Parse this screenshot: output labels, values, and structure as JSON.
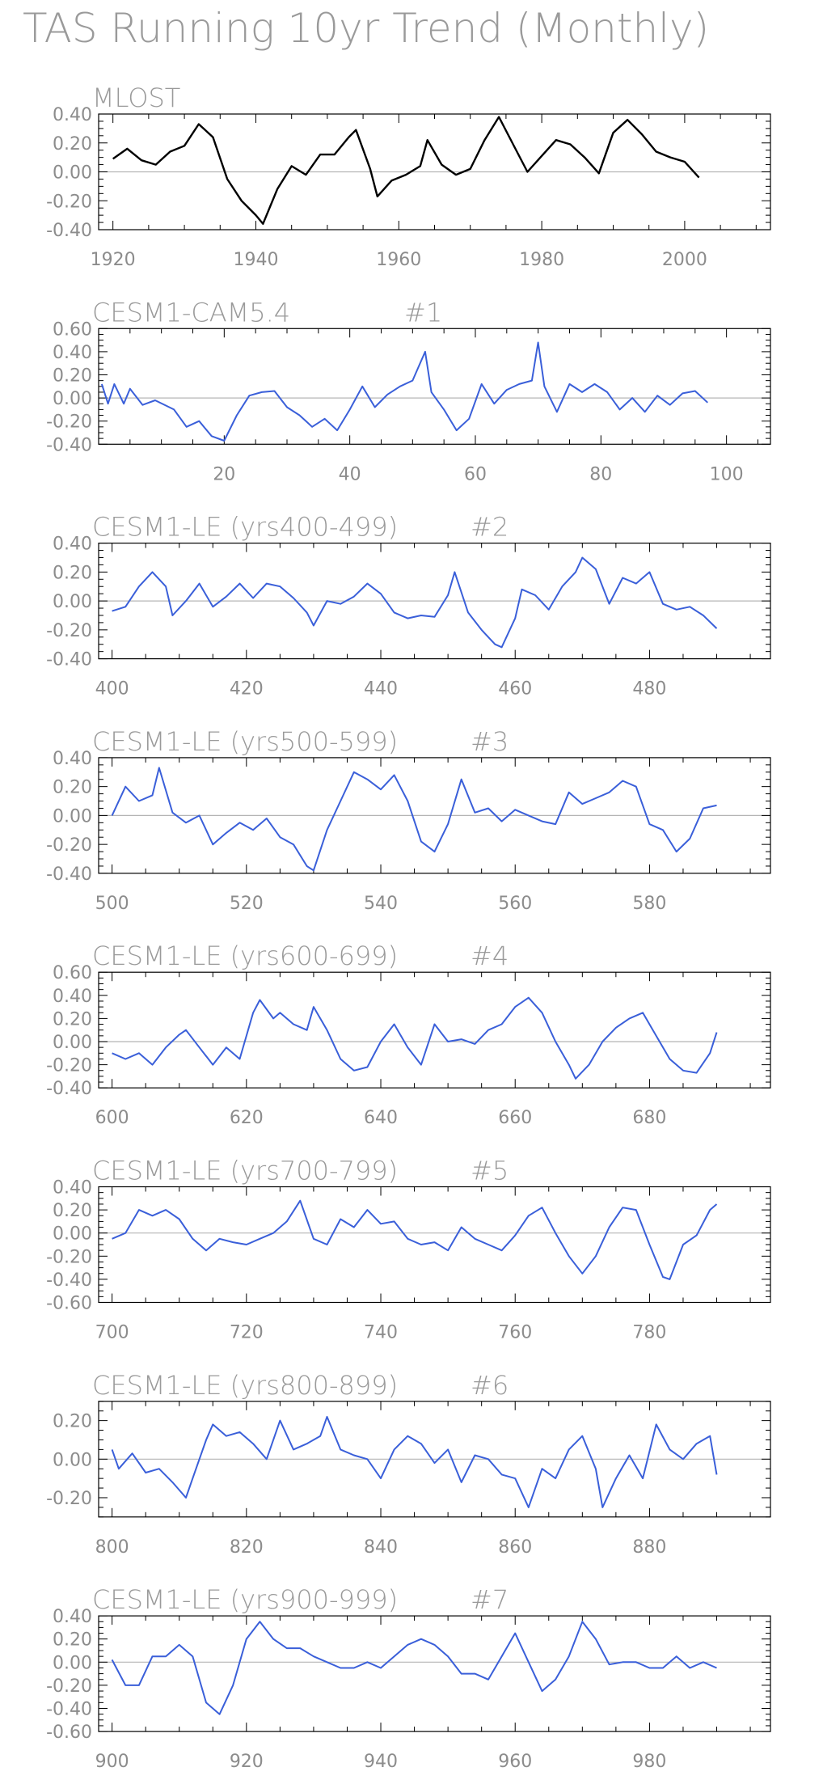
{
  "title": "TAS Running 10yr Trend (Monthly)",
  "colors": {
    "obs": "#000000",
    "model": "#3a5fd9",
    "text": "#9a9a9a",
    "zero": "#b5b5b5"
  },
  "chart_data": [
    {
      "type": "line",
      "title": "MLOST",
      "tag": "",
      "color": "obs",
      "xlim": [
        1918,
        2012
      ],
      "ylim": [
        -0.4,
        0.4
      ],
      "xticks": [
        1920,
        1940,
        1960,
        1980,
        2000
      ],
      "yticks": [
        -0.4,
        -0.2,
        0.0,
        0.2,
        0.4
      ],
      "ytick_labels": [
        "-0.40",
        "-0.20",
        "0.00",
        "0.20",
        "0.40"
      ],
      "x": [
        1920,
        1922,
        1924,
        1926,
        1928,
        1930,
        1932,
        1934,
        1936,
        1938,
        1940,
        1941,
        1943,
        1945,
        1947,
        1949,
        1951,
        1953,
        1954,
        1956,
        1957,
        1959,
        1961,
        1963,
        1964,
        1966,
        1968,
        1970,
        1972,
        1974,
        1976,
        1978,
        1980,
        1982,
        1984,
        1986,
        1988,
        1990,
        1992,
        1994,
        1996,
        1998,
        2000,
        2002
      ],
      "y": [
        0.09,
        0.16,
        0.08,
        0.05,
        0.14,
        0.18,
        0.33,
        0.24,
        -0.05,
        -0.2,
        -0.3,
        -0.36,
        -0.12,
        0.04,
        -0.02,
        0.12,
        0.12,
        0.24,
        0.29,
        0.02,
        -0.17,
        -0.06,
        -0.02,
        0.04,
        0.22,
        0.05,
        -0.02,
        0.02,
        0.22,
        0.38,
        0.19,
        0.0,
        0.11,
        0.22,
        0.19,
        0.1,
        -0.01,
        0.27,
        0.36,
        0.26,
        0.14,
        0.1,
        0.07,
        -0.04
      ]
    },
    {
      "type": "line",
      "title": "CESM1-CAM5.4",
      "tag": "#1",
      "color": "model",
      "xlim": [
        0,
        107
      ],
      "ylim": [
        -0.4,
        0.6
      ],
      "xticks": [
        20,
        40,
        60,
        80,
        100
      ],
      "yticks": [
        -0.4,
        -0.2,
        0.0,
        0.2,
        0.4,
        0.6
      ],
      "ytick_labels": [
        "-0.40",
        "-0.20",
        "0.00",
        "0.20",
        "0.40",
        "0.60"
      ],
      "x": [
        0.5,
        1.5,
        2.5,
        4,
        5,
        7,
        9,
        12,
        14,
        16,
        18,
        20,
        22,
        24,
        26,
        28,
        30,
        32,
        34,
        36,
        38,
        40,
        42,
        44,
        46,
        48,
        50,
        52,
        53,
        55,
        57,
        59,
        61,
        63,
        65,
        67,
        69,
        70,
        71,
        73,
        75,
        77,
        79,
        81,
        83,
        85,
        87,
        89,
        91,
        93,
        95,
        97
      ],
      "y": [
        0.12,
        -0.05,
        0.12,
        -0.05,
        0.08,
        -0.06,
        -0.02,
        -0.1,
        -0.25,
        -0.2,
        -0.33,
        -0.37,
        -0.15,
        0.02,
        0.05,
        0.06,
        -0.08,
        -0.15,
        -0.25,
        -0.18,
        -0.28,
        -0.1,
        0.1,
        -0.08,
        0.03,
        0.1,
        0.15,
        0.4,
        0.05,
        -0.1,
        -0.28,
        -0.18,
        0.12,
        -0.05,
        0.07,
        0.12,
        0.15,
        0.48,
        0.1,
        -0.12,
        0.12,
        0.05,
        0.12,
        0.05,
        -0.1,
        0.0,
        -0.12,
        0.02,
        -0.06,
        0.04,
        0.06,
        -0.04
      ]
    },
    {
      "type": "line",
      "title": "CESM1-LE (yrs400-499)",
      "tag": "#2",
      "color": "model",
      "xlim": [
        398,
        498
      ],
      "ylim": [
        -0.4,
        0.4
      ],
      "xticks": [
        400,
        420,
        440,
        460,
        480
      ],
      "yticks": [
        -0.4,
        -0.2,
        0.0,
        0.2,
        0.4
      ],
      "ytick_labels": [
        "-0.40",
        "-0.20",
        "0.00",
        "0.20",
        "0.40"
      ],
      "x": [
        400,
        402,
        404,
        406,
        408,
        409,
        411,
        413,
        415,
        417,
        419,
        421,
        423,
        425,
        427,
        429,
        430,
        432,
        434,
        436,
        438,
        440,
        442,
        444,
        446,
        448,
        450,
        451,
        453,
        455,
        457,
        458,
        460,
        461,
        463,
        465,
        467,
        469,
        470,
        472,
        474,
        476,
        478,
        480,
        482,
        484,
        486,
        488,
        490
      ],
      "y": [
        -0.07,
        -0.04,
        0.1,
        0.2,
        0.1,
        -0.1,
        0.0,
        0.12,
        -0.04,
        0.03,
        0.12,
        0.02,
        0.12,
        0.1,
        0.02,
        -0.08,
        -0.17,
        0.0,
        -0.02,
        0.03,
        0.12,
        0.05,
        -0.08,
        -0.12,
        -0.1,
        -0.11,
        0.04,
        0.2,
        -0.08,
        -0.2,
        -0.3,
        -0.32,
        -0.12,
        0.08,
        0.04,
        -0.06,
        0.1,
        0.2,
        0.3,
        0.22,
        -0.02,
        0.16,
        0.12,
        0.2,
        -0.02,
        -0.06,
        -0.04,
        -0.1,
        -0.19
      ]
    },
    {
      "type": "line",
      "title": "CESM1-LE (yrs500-599)",
      "tag": "#3",
      "color": "model",
      "xlim": [
        498,
        598
      ],
      "ylim": [
        -0.4,
        0.4
      ],
      "xticks": [
        500,
        520,
        540,
        560,
        580
      ],
      "yticks": [
        -0.4,
        -0.2,
        0.0,
        0.2,
        0.4
      ],
      "ytick_labels": [
        "-0.40",
        "-0.20",
        "0.00",
        "0.20",
        "0.40"
      ],
      "x": [
        500,
        502,
        504,
        506,
        507,
        509,
        511,
        513,
        515,
        517,
        519,
        521,
        523,
        525,
        527,
        529,
        530,
        532,
        534,
        536,
        538,
        540,
        542,
        544,
        546,
        548,
        550,
        552,
        554,
        556,
        558,
        560,
        562,
        564,
        566,
        568,
        570,
        572,
        574,
        576,
        578,
        580,
        582,
        584,
        586,
        588,
        590
      ],
      "y": [
        0.0,
        0.2,
        0.1,
        0.14,
        0.33,
        0.02,
        -0.05,
        0.0,
        -0.2,
        -0.12,
        -0.05,
        -0.1,
        -0.02,
        -0.15,
        -0.2,
        -0.35,
        -0.38,
        -0.1,
        0.1,
        0.3,
        0.25,
        0.18,
        0.28,
        0.1,
        -0.18,
        -0.25,
        -0.06,
        0.25,
        0.02,
        0.05,
        -0.04,
        0.04,
        0.0,
        -0.04,
        -0.06,
        0.16,
        0.08,
        0.12,
        0.16,
        0.24,
        0.2,
        -0.06,
        -0.1,
        -0.25,
        -0.16,
        0.05,
        0.07
      ]
    },
    {
      "type": "line",
      "title": "CESM1-LE (yrs600-699)",
      "tag": "#4",
      "color": "model",
      "xlim": [
        598,
        698
      ],
      "ylim": [
        -0.4,
        0.6
      ],
      "xticks": [
        600,
        620,
        640,
        660,
        680
      ],
      "yticks": [
        -0.4,
        -0.2,
        0.0,
        0.2,
        0.4,
        0.6
      ],
      "ytick_labels": [
        "-0.40",
        "-0.20",
        "0.00",
        "0.20",
        "0.40",
        "0.60"
      ],
      "x": [
        600,
        602,
        604,
        606,
        608,
        610,
        611,
        613,
        615,
        617,
        619,
        621,
        622,
        624,
        625,
        627,
        629,
        630,
        632,
        634,
        636,
        638,
        640,
        642,
        644,
        646,
        648,
        650,
        652,
        654,
        656,
        658,
        660,
        662,
        664,
        666,
        668,
        669,
        671,
        673,
        675,
        677,
        679,
        681,
        683,
        685,
        687,
        689,
        690
      ],
      "y": [
        -0.1,
        -0.15,
        -0.1,
        -0.2,
        -0.05,
        0.06,
        0.1,
        -0.05,
        -0.2,
        -0.05,
        -0.15,
        0.25,
        0.36,
        0.2,
        0.25,
        0.15,
        0.1,
        0.3,
        0.1,
        -0.15,
        -0.25,
        -0.22,
        0.0,
        0.15,
        -0.05,
        -0.2,
        0.15,
        0.0,
        0.02,
        -0.02,
        0.1,
        0.15,
        0.3,
        0.38,
        0.25,
        0.0,
        -0.2,
        -0.32,
        -0.2,
        0.0,
        0.12,
        0.2,
        0.25,
        0.05,
        -0.15,
        -0.25,
        -0.27,
        -0.1,
        0.08
      ]
    },
    {
      "type": "line",
      "title": "CESM1-LE (yrs700-799)",
      "tag": "#5",
      "color": "model",
      "xlim": [
        698,
        798
      ],
      "ylim": [
        -0.6,
        0.4
      ],
      "xticks": [
        700,
        720,
        740,
        760,
        780
      ],
      "yticks": [
        -0.6,
        -0.4,
        -0.2,
        0.0,
        0.2,
        0.4
      ],
      "ytick_labels": [
        "-0.60",
        "-0.40",
        "-0.20",
        "0.00",
        "0.20",
        "0.40"
      ],
      "x": [
        700,
        702,
        704,
        706,
        708,
        710,
        712,
        714,
        716,
        718,
        720,
        722,
        724,
        726,
        728,
        730,
        732,
        734,
        736,
        738,
        740,
        742,
        744,
        746,
        748,
        750,
        752,
        754,
        756,
        758,
        760,
        762,
        764,
        766,
        768,
        770,
        772,
        774,
        776,
        778,
        780,
        782,
        783,
        785,
        787,
        789,
        790
      ],
      "y": [
        -0.05,
        0.0,
        0.2,
        0.15,
        0.2,
        0.12,
        -0.05,
        -0.15,
        -0.05,
        -0.08,
        -0.1,
        -0.05,
        0.0,
        0.1,
        0.28,
        -0.05,
        -0.1,
        0.12,
        0.05,
        0.2,
        0.08,
        0.1,
        -0.05,
        -0.1,
        -0.08,
        -0.15,
        0.05,
        -0.05,
        -0.1,
        -0.15,
        -0.02,
        0.15,
        0.22,
        0.0,
        -0.2,
        -0.35,
        -0.2,
        0.05,
        0.22,
        0.2,
        -0.1,
        -0.38,
        -0.4,
        -0.1,
        -0.02,
        0.2,
        0.25
      ]
    },
    {
      "type": "line",
      "title": "CESM1-LE (yrs800-899)",
      "tag": "#6",
      "color": "model",
      "xlim": [
        798,
        898
      ],
      "ylim": [
        -0.3,
        0.3
      ],
      "xticks": [
        800,
        820,
        840,
        860,
        880
      ],
      "yticks": [
        -0.2,
        0.0,
        0.2
      ],
      "ytick_labels": [
        "-0.20",
        "0.00",
        "0.20"
      ],
      "x": [
        800,
        801,
        803,
        805,
        807,
        809,
        811,
        812,
        814,
        815,
        817,
        819,
        821,
        823,
        825,
        827,
        829,
        831,
        832,
        834,
        836,
        838,
        840,
        842,
        844,
        846,
        848,
        850,
        852,
        854,
        856,
        858,
        860,
        862,
        864,
        866,
        868,
        870,
        872,
        873,
        875,
        877,
        879,
        881,
        883,
        885,
        887,
        889,
        890
      ],
      "y": [
        0.05,
        -0.05,
        0.03,
        -0.07,
        -0.05,
        -0.12,
        -0.2,
        -0.1,
        0.1,
        0.18,
        0.12,
        0.14,
        0.08,
        0.0,
        0.2,
        0.05,
        0.08,
        0.12,
        0.22,
        0.05,
        0.02,
        0.0,
        -0.1,
        0.05,
        0.12,
        0.08,
        -0.02,
        0.05,
        -0.12,
        0.02,
        0.0,
        -0.08,
        -0.1,
        -0.25,
        -0.05,
        -0.1,
        0.05,
        0.12,
        -0.05,
        -0.25,
        -0.1,
        0.02,
        -0.1,
        0.18,
        0.05,
        0.0,
        0.08,
        0.12,
        -0.08
      ]
    },
    {
      "type": "line",
      "title": "CESM1-LE (yrs900-999)",
      "tag": "#7",
      "color": "model",
      "xlim": [
        898,
        998
      ],
      "ylim": [
        -0.6,
        0.4
      ],
      "xticks": [
        900,
        920,
        940,
        960,
        980
      ],
      "yticks": [
        -0.6,
        -0.4,
        -0.2,
        0.0,
        0.2,
        0.4
      ],
      "ytick_labels": [
        "-0.60",
        "-0.40",
        "-0.20",
        "0.00",
        "0.20",
        "0.40"
      ],
      "x": [
        900,
        902,
        904,
        906,
        908,
        910,
        912,
        914,
        916,
        918,
        920,
        922,
        924,
        926,
        928,
        930,
        932,
        934,
        936,
        938,
        940,
        942,
        944,
        946,
        948,
        950,
        952,
        954,
        956,
        958,
        960,
        962,
        964,
        966,
        968,
        970,
        972,
        974,
        976,
        978,
        980,
        982,
        984,
        986,
        988,
        990
      ],
      "y": [
        0.02,
        -0.2,
        -0.2,
        0.05,
        0.05,
        0.15,
        0.05,
        -0.35,
        -0.45,
        -0.2,
        0.2,
        0.35,
        0.2,
        0.12,
        0.12,
        0.05,
        0.0,
        -0.05,
        -0.05,
        0.0,
        -0.05,
        0.05,
        0.15,
        0.2,
        0.15,
        0.05,
        -0.1,
        -0.1,
        -0.15,
        0.05,
        0.25,
        0.0,
        -0.25,
        -0.15,
        0.05,
        0.35,
        0.2,
        -0.02,
        0.0,
        0.0,
        -0.05,
        -0.05,
        0.05,
        -0.05,
        0.0,
        -0.05
      ]
    }
  ]
}
